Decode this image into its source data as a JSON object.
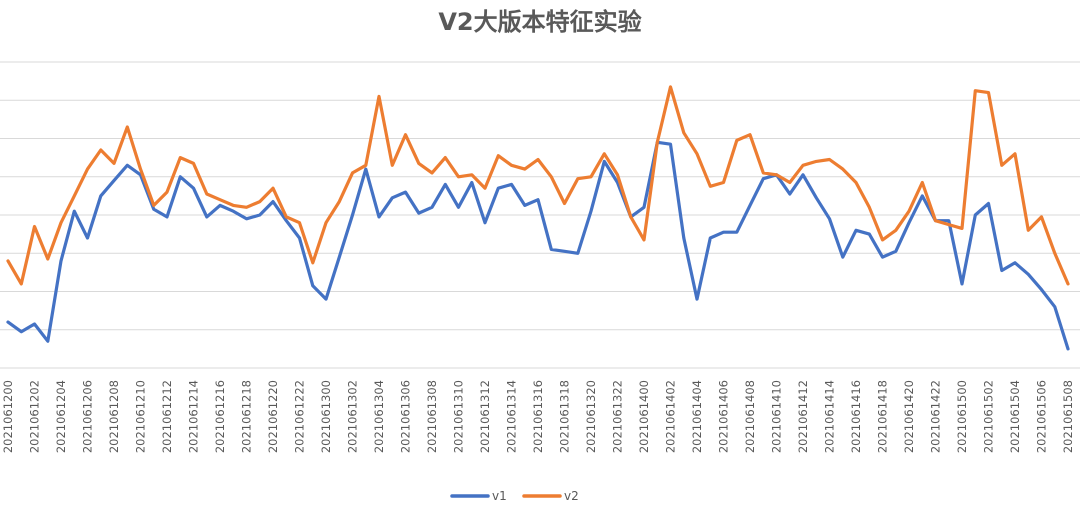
{
  "chart_data": {
    "type": "line",
    "title": "V2大版本特征实验",
    "xlabel": "",
    "ylabel": "",
    "ylim": [
      0,
      8
    ],
    "grid": true,
    "legend_position": "bottom",
    "categories": [
      "2021061200",
      "2021061201",
      "2021061202",
      "2021061203",
      "2021061204",
      "2021061205",
      "2021061206",
      "2021061207",
      "2021061208",
      "2021061209",
      "2021061210",
      "2021061211",
      "2021061212",
      "2021061213",
      "2021061214",
      "2021061215",
      "2021061216",
      "2021061217",
      "2021061218",
      "2021061219",
      "2021061220",
      "2021061221",
      "2021061222",
      "2021061223",
      "2021061300",
      "2021061301",
      "2021061302",
      "2021061303",
      "2021061304",
      "2021061305",
      "2021061306",
      "2021061307",
      "2021061308",
      "2021061309",
      "2021061310",
      "2021061311",
      "2021061312",
      "2021061313",
      "2021061314",
      "2021061315",
      "2021061316",
      "2021061317",
      "2021061318",
      "2021061319",
      "2021061320",
      "2021061321",
      "2021061322",
      "2021061323",
      "2021061400",
      "2021061401",
      "2021061402",
      "2021061403",
      "2021061404",
      "2021061405",
      "2021061406",
      "2021061407",
      "2021061408",
      "2021061409",
      "2021061410",
      "2021061411",
      "2021061412",
      "2021061413",
      "2021061414",
      "2021061415",
      "2021061416",
      "2021061417",
      "2021061418",
      "2021061419",
      "2021061420",
      "2021061421",
      "2021061422",
      "2021061423",
      "2021061500",
      "2021061501",
      "2021061502",
      "2021061503",
      "2021061504",
      "2021061505",
      "2021061506",
      "2021061507",
      "2021061508"
    ],
    "series": [
      {
        "name": "v1",
        "color": "#4472C4",
        "values": [
          1.2,
          0.95,
          1.15,
          0.7,
          2.8,
          4.1,
          3.4,
          4.5,
          4.9,
          5.3,
          5.05,
          4.15,
          3.95,
          5.0,
          4.7,
          3.95,
          4.25,
          4.1,
          3.9,
          4.0,
          4.35,
          3.85,
          3.4,
          2.15,
          1.8,
          2.9,
          4.0,
          5.2,
          3.95,
          4.45,
          4.6,
          4.05,
          4.2,
          4.8,
          4.2,
          4.85,
          3.8,
          4.7,
          4.8,
          4.25,
          4.4,
          3.1,
          3.05,
          3.0,
          4.1,
          5.4,
          4.85,
          3.95,
          4.2,
          5.9,
          5.85,
          3.4,
          1.8,
          3.4,
          3.55,
          3.55,
          4.25,
          4.95,
          5.05,
          4.55,
          5.05,
          4.45,
          3.9,
          2.9,
          3.6,
          3.5,
          2.9,
          3.05,
          3.8,
          4.5,
          3.85,
          3.85,
          2.2,
          4.0,
          4.3,
          2.55,
          2.75,
          2.45,
          2.05,
          1.6,
          0.5
        ]
      },
      {
        "name": "v2",
        "color": "#ED7D31",
        "values": [
          2.8,
          2.2,
          3.7,
          2.85,
          3.8,
          4.5,
          5.2,
          5.7,
          5.35,
          6.3,
          5.2,
          4.25,
          4.6,
          5.5,
          5.35,
          4.55,
          4.4,
          4.25,
          4.2,
          4.35,
          4.7,
          3.95,
          3.8,
          2.75,
          3.8,
          4.35,
          5.1,
          5.3,
          7.1,
          5.3,
          6.1,
          5.35,
          5.1,
          5.5,
          5.0,
          5.05,
          4.7,
          5.55,
          5.3,
          5.2,
          5.45,
          5.0,
          4.3,
          4.95,
          5.0,
          5.6,
          5.05,
          3.95,
          3.35,
          5.9,
          7.35,
          6.15,
          5.6,
          4.75,
          4.85,
          5.95,
          6.1,
          5.1,
          5.05,
          4.85,
          5.3,
          5.4,
          5.45,
          5.2,
          4.85,
          4.2,
          3.35,
          3.6,
          4.1,
          4.85,
          3.85,
          3.75,
          3.65,
          7.25,
          7.2,
          5.3,
          5.6,
          3.6,
          3.95,
          3.0,
          2.2
        ]
      }
    ]
  }
}
